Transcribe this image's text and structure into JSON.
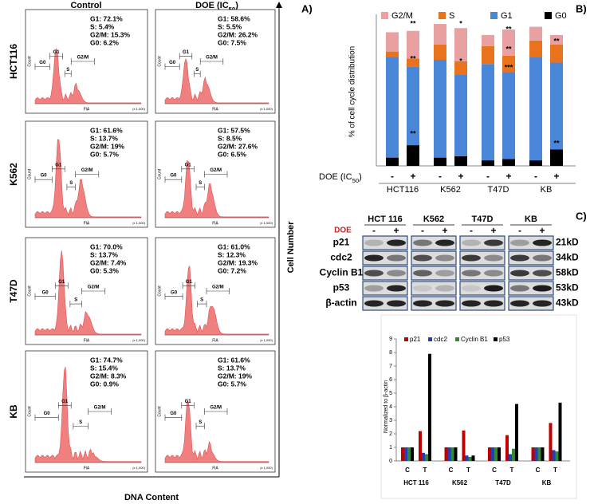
{
  "panels": [
    "A)",
    "B)",
    "C)"
  ],
  "flow": {
    "columns": [
      [
        "Control"
      ],
      [
        "DOE (IC",
        "50",
        ")"
      ]
    ],
    "rows": [
      "HCT116",
      "K562",
      "T47D",
      "KB"
    ],
    "y_label": "Cell Number",
    "x_label": "DNA Content",
    "gates": [
      "G0",
      "G1",
      "S",
      "G2/M"
    ],
    "count_label": "Count",
    "axis_label": "FlA",
    "scale_label": "(x 1,000)",
    "stats": [
      [
        [
          "G1: 72.1%",
          "S: 5.4%",
          "G2/M: 15.3%",
          "G0: 6.2%"
        ],
        [
          "G1: 58.6%",
          "S: 5.5%",
          "G2/M: 26.2%",
          "G0: 7.5%"
        ]
      ],
      [
        [
          "G1: 61.6%",
          "S: 13.7%",
          "G2/M: 19%",
          "G0: 5.7%"
        ],
        [
          "G1: 57.5%",
          "S: 8.5%",
          "G2/M: 27.6%",
          "G0: 6.5%"
        ]
      ],
      [
        [
          "G1: 70.0%",
          "S: 13.7%",
          "G2/M: 7.4%",
          "G0: 5.3%"
        ],
        [
          "G1: 61.0%",
          "S: 12.3%",
          "G2/M: 19.3%",
          "G0: 7.2%"
        ]
      ],
      [
        [
          "G1: 74.7%",
          "S: 15.4%",
          "G2/M: 8.3%",
          "G0: 0.9%"
        ],
        [
          "G1: 61.6%",
          "S: 13.7%",
          "G2/M: 19%",
          "G0: 5.7%"
        ]
      ]
    ]
  },
  "blot": {
    "cell_lines": [
      "HCT 116",
      "K562",
      "T47D",
      "KB"
    ],
    "treatment": "DOE",
    "signs": [
      "-",
      "+"
    ],
    "proteins": [
      "p21",
      "cdc2",
      "Cyclin B1",
      "p53",
      "β-actin"
    ],
    "sizes": [
      "21kD",
      "34kD",
      "58kD",
      "53kD",
      "43kD"
    ]
  },
  "chart_data": [
    {
      "type": "stacked_bar",
      "y_label": "% of cell cycle distribution",
      "x_label": [
        "DOE (IC",
        "50",
        ")"
      ],
      "categories": [
        "-",
        "+",
        "-",
        "+",
        "-",
        "+",
        "-",
        "+"
      ],
      "groups": [
        "HCT116",
        "K562",
        "T47D",
        "KB"
      ],
      "series": [
        {
          "name": "G0",
          "color": "#000000",
          "values": [
            6,
            15,
            6,
            7,
            4,
            5,
            4,
            12
          ]
        },
        {
          "name": "G1",
          "color": "#4a86d8",
          "values": [
            73,
            57,
            71,
            59,
            70,
            63,
            75,
            63
          ]
        },
        {
          "name": "S",
          "color": "#e8731c",
          "values": [
            4,
            6,
            11,
            10,
            13,
            12,
            12,
            13
          ]
        },
        {
          "name": "G2/M",
          "color": "#e8a0a0",
          "values": [
            14,
            20,
            15,
            24,
            8,
            19,
            10,
            7
          ]
        }
      ],
      "ylim": [
        0,
        110
      ],
      "annotations": [
        "**",
        "**",
        "**",
        "*",
        "*",
        "**",
        "**",
        "***",
        "**",
        "**"
      ]
    },
    {
      "type": "grouped_bar",
      "y_label": "Normalized to β-actin",
      "categories": [
        "C",
        "T",
        "C",
        "T",
        "C",
        "T",
        "C",
        "T"
      ],
      "groups": [
        "HCT 116",
        "K562",
        "T47D",
        "KB"
      ],
      "series": [
        {
          "name": "p21",
          "color": "#c00000",
          "values": [
            1,
            2.2,
            1,
            2.25,
            1,
            1.9,
            1,
            2.8
          ]
        },
        {
          "name": "cdc2",
          "color": "#1f3fbf",
          "values": [
            1,
            0.6,
            1,
            0.4,
            1,
            0.5,
            1,
            0.8
          ]
        },
        {
          "name": "Cyclin B1",
          "color": "#2e8b2e",
          "values": [
            1,
            0.5,
            1,
            0.3,
            1,
            0.9,
            1,
            0.7
          ]
        },
        {
          "name": "p53",
          "color": "#000000",
          "values": [
            1,
            7.9,
            1,
            0.4,
            1,
            4.2,
            1,
            4.3
          ]
        }
      ],
      "ylim": [
        0,
        9
      ],
      "yticks": [
        0,
        1,
        2,
        3,
        4,
        5,
        6,
        7,
        8,
        9
      ],
      "legend": "top-left"
    }
  ]
}
